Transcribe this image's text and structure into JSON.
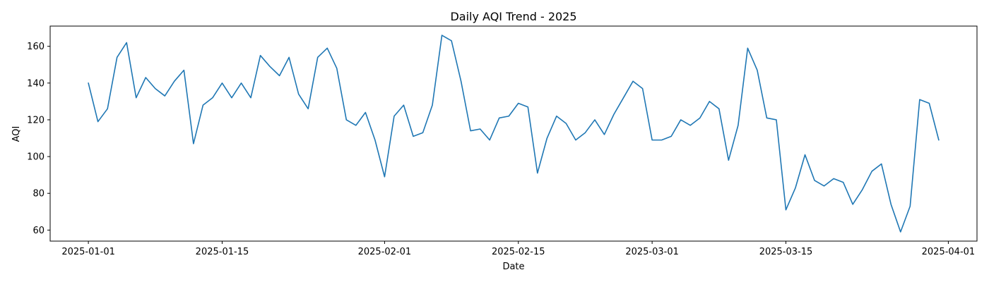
{
  "chart_data": {
    "type": "line",
    "title": "Daily AQI Trend - 2025",
    "xlabel": "Date",
    "ylabel": "AQI",
    "x_start": "2025-01-01",
    "x_range": [
      "2024-12-28",
      "2025-04-04"
    ],
    "ylim": [
      54,
      171
    ],
    "x_ticks": [
      "2025-01-01",
      "2025-01-15",
      "2025-02-01",
      "2025-02-15",
      "2025-03-01",
      "2025-03-15",
      "2025-04-01"
    ],
    "y_ticks": [
      60,
      80,
      100,
      120,
      140,
      160
    ],
    "grid": false,
    "line_color": "#1f77b4",
    "series": [
      {
        "values": [
          140,
          119,
          126,
          154,
          162,
          132,
          143,
          137,
          133,
          141,
          147,
          107,
          128,
          132,
          140,
          132,
          140,
          132,
          155,
          149,
          144,
          154,
          134,
          126,
          154,
          159,
          148,
          120,
          117,
          124,
          109,
          89,
          122,
          128,
          111,
          113,
          128,
          166,
          163,
          141,
          114,
          115,
          109,
          121,
          122,
          129,
          127,
          91,
          110,
          122,
          118,
          109,
          113,
          120,
          112,
          123,
          132,
          141,
          137,
          109,
          109,
          111,
          120,
          117,
          121,
          130,
          126,
          98,
          117,
          159,
          147,
          121,
          120,
          71,
          83,
          101,
          87,
          84,
          88,
          86,
          74,
          82,
          92,
          96,
          74,
          59,
          73,
          131,
          129,
          109
        ]
      }
    ]
  }
}
